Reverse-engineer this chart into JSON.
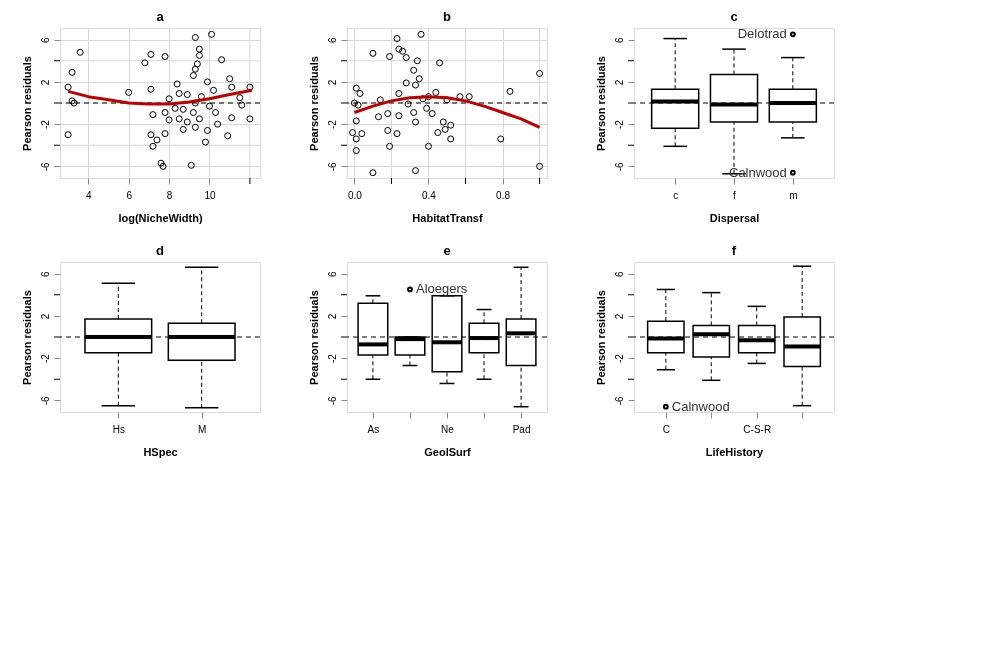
{
  "chart_data": [
    {
      "type": "scatter",
      "title": "a",
      "xlabel": "log(NicheWidth)",
      "ylabel": "Pearson residuals",
      "grid": true,
      "marker": "circle",
      "xlim": [
        2.6,
        12.5
      ],
      "xticks": [
        4,
        6,
        8,
        10,
        {
          "value": 12,
          "label": null
        }
      ],
      "ylim": [
        -7.1,
        7.1
      ],
      "yticks": [
        -6,
        {
          "value": -4,
          "label": null
        },
        -2,
        {
          "value": 0,
          "label": null
        },
        2,
        {
          "value": 4,
          "label": null
        },
        6
      ],
      "ref_lines": [
        {
          "axis": "y",
          "value": 0,
          "label": null,
          "color": "#000000",
          "line_style": "dashed"
        }
      ],
      "series": [
        {
          "type": "scatter",
          "color": "#000000",
          "x": [
            3.6,
            3.2,
            3.0,
            3.2,
            3.3,
            3.0,
            6.0,
            7.1,
            6.8,
            7.1,
            7.8,
            7.2,
            7.1,
            7.4,
            7.2,
            7.8,
            7.8,
            8.0,
            8.0,
            7.6,
            7.7,
            9.1,
            8.4,
            8.5,
            8.7,
            8.9,
            8.7,
            9.3,
            9.5,
            9.5,
            9.4,
            9.3,
            9.2,
            10.1,
            10.6,
            9.9,
            10.2,
            9.6,
            9.3,
            9.2,
            9.5,
            9.3,
            9.8,
            9.9,
            10.3,
            10.4,
            10.9,
            11.1,
            11.0,
            11.1,
            11.6,
            12.0,
            12.0,
            11.5,
            10.0,
            8.9,
            8.3,
            8.5
          ],
          "values": [
            4.8,
            2.9,
            1.5,
            0.2,
            0.0,
            -3.0,
            1.0,
            1.3,
            3.8,
            4.6,
            4.4,
            -1.1,
            -3.0,
            -3.5,
            -4.1,
            -2.9,
            -0.9,
            -1.6,
            0.4,
            -5.7,
            -6.0,
            -5.9,
            1.8,
            0.9,
            -0.6,
            -1.8,
            -2.5,
            6.2,
            5.1,
            4.5,
            3.7,
            3.2,
            2.6,
            6.5,
            4.1,
            2.0,
            1.2,
            0.6,
            0.0,
            -0.9,
            -1.5,
            -2.3,
            -3.7,
            -2.6,
            -0.9,
            -2.0,
            -3.1,
            -1.4,
            2.3,
            1.5,
            -0.2,
            -1.5,
            1.5,
            0.5,
            -0.3,
            0.8,
            -0.5,
            -1.5
          ]
        },
        {
          "type": "line",
          "marker": "none",
          "color": "#c00000",
          "x": [
            3.0,
            4.0,
            5.0,
            6.0,
            7.0,
            8.0,
            9.0,
            10.0,
            11.0,
            12.1
          ],
          "values": [
            1.1,
            0.6,
            0.3,
            0.0,
            -0.1,
            -0.1,
            0.1,
            0.4,
            0.8,
            1.2
          ]
        }
      ]
    },
    {
      "type": "scatter",
      "title": "b",
      "xlabel": "HabitatTransf",
      "ylabel": "Pearson residuals",
      "grid": true,
      "marker": "circle",
      "xlim": [
        -0.04,
        1.04
      ],
      "xticks": [
        {
          "value": 0,
          "label": "0.0"
        },
        {
          "value": 0.2,
          "label": null
        },
        0.4,
        {
          "value": 0.6,
          "label": null
        },
        0.8,
        {
          "value": 1.0,
          "label": null
        }
      ],
      "ylim": [
        -7.1,
        7.1
      ],
      "yticks": [
        -6,
        {
          "value": -4,
          "label": null
        },
        -2,
        {
          "value": 0,
          "label": null
        },
        2,
        {
          "value": 4,
          "label": null
        },
        6
      ],
      "ref_lines": [
        {
          "axis": "y",
          "value": 0,
          "label": null,
          "color": "#000000",
          "line_style": "dashed"
        }
      ],
      "series": [
        {
          "type": "scatter",
          "color": "#000000",
          "x": [
            0.1,
            0.1,
            0.33,
            0.36,
            0.23,
            0.24,
            0.26,
            0.19,
            0.28,
            0.34,
            0.46,
            0.32,
            0.35,
            0.33,
            0.28,
            0.24,
            0.14,
            0.01,
            0.03,
            0.0,
            0.02,
            0.01,
            -0.01,
            0.04,
            0.01,
            0.01,
            0.13,
            0.18,
            0.18,
            0.19,
            0.23,
            0.24,
            0.29,
            0.32,
            0.33,
            0.39,
            0.4,
            0.44,
            0.42,
            0.45,
            0.48,
            0.49,
            0.52,
            0.52,
            0.5,
            0.57,
            0.62,
            0.79,
            0.84,
            1.0,
            1.0,
            0.37,
            0.4
          ],
          "values": [
            4.7,
            -6.6,
            -6.4,
            6.5,
            6.1,
            5.1,
            4.9,
            4.4,
            4.3,
            4.0,
            3.8,
            3.1,
            2.3,
            1.7,
            1.9,
            0.9,
            0.3,
            1.4,
            0.9,
            0.0,
            -0.2,
            -1.7,
            -2.8,
            -2.9,
            -3.4,
            -4.5,
            -1.3,
            -1.0,
            -2.6,
            -4.1,
            -2.9,
            -1.2,
            -0.1,
            -0.9,
            -1.8,
            -0.5,
            -4.1,
            1.0,
            -1.0,
            -2.8,
            -1.8,
            -2.5,
            -2.1,
            -3.4,
            0.3,
            0.6,
            0.6,
            -3.4,
            1.1,
            2.8,
            -6.0,
            0.4,
            0.6
          ]
        },
        {
          "type": "line",
          "marker": "none",
          "color": "#c00000",
          "x": [
            0.0,
            0.1,
            0.2,
            0.3,
            0.4,
            0.5,
            0.6,
            0.7,
            0.8,
            0.9,
            1.0
          ],
          "values": [
            -0.9,
            -0.3,
            0.2,
            0.5,
            0.6,
            0.5,
            0.2,
            -0.3,
            -0.9,
            -1.5,
            -2.3
          ]
        }
      ]
    },
    {
      "type": "box",
      "title": "c",
      "xlabel": "Dispersal",
      "ylabel": "Pearson residuals",
      "categories": [
        "c",
        "f",
        "m"
      ],
      "ylim": [
        -7.1,
        7.1
      ],
      "yticks": [
        -6,
        {
          "value": -4,
          "label": null
        },
        -2,
        {
          "value": 0,
          "label": null
        },
        2,
        {
          "value": 4,
          "label": null
        },
        6
      ],
      "ref_lines": [
        {
          "axis": "y",
          "value": 0,
          "label": null,
          "color": "#000000",
          "line_style": "dashed"
        }
      ],
      "boxes": [
        {
          "low": -4.1,
          "q1": -2.4,
          "median": 0.15,
          "q3": 1.3,
          "high": 6.1
        },
        {
          "low": -6.7,
          "q1": -1.8,
          "median": -0.15,
          "q3": 2.7,
          "high": 5.1
        },
        {
          "low": -3.3,
          "q1": -1.8,
          "median": 0.0,
          "q3": 1.3,
          "high": 4.3,
          "outliers": [
            6.5,
            -6.6
          ]
        }
      ],
      "annotations": [
        "Delotrad",
        "Calnwood"
      ]
    },
    {
      "type": "box",
      "title": "d",
      "xlabel": "HSpec",
      "ylabel": "Pearson residuals",
      "categories": [
        "Hs",
        "M"
      ],
      "ylim": [
        -7.1,
        7.1
      ],
      "yticks": [
        -6,
        {
          "value": -4,
          "label": null
        },
        -2,
        {
          "value": 0,
          "label": null
        },
        2,
        {
          "value": 4,
          "label": null
        },
        6
      ],
      "ref_lines": [
        {
          "axis": "y",
          "value": 0,
          "label": null,
          "color": "#000000",
          "line_style": "dashed"
        }
      ],
      "boxes": [
        {
          "low": -6.5,
          "q1": -1.5,
          "median": 0.0,
          "q3": 1.7,
          "high": 5.1
        },
        {
          "low": -6.7,
          "q1": -2.2,
          "median": 0.0,
          "q3": 1.3,
          "high": 6.6
        }
      ]
    },
    {
      "type": "box",
      "title": "e",
      "xlabel": "GeolSurf",
      "ylabel": "Pearson residuals",
      "categories": [
        "As",
        null,
        "Ne",
        null,
        "Pad"
      ],
      "ylim": [
        -7.1,
        7.1
      ],
      "yticks": [
        -6,
        {
          "value": -4,
          "label": null
        },
        -2,
        {
          "value": 0,
          "label": null
        },
        2,
        {
          "value": 4,
          "label": null
        },
        6
      ],
      "ref_lines": [
        {
          "axis": "y",
          "value": 0,
          "label": null,
          "color": "#000000",
          "line_style": "dashed"
        }
      ],
      "boxes": [
        {
          "low": -4.0,
          "q1": -1.7,
          "median": -0.7,
          "q3": 3.2,
          "high": 3.9
        },
        {
          "low": -2.7,
          "q1": -1.7,
          "median": -0.2,
          "q3": 0.0,
          "high": 0.0,
          "outliers": [
            4.5
          ]
        },
        {
          "low": -4.4,
          "q1": -3.3,
          "median": -0.5,
          "q3": 3.9,
          "high": 3.9
        },
        {
          "low": -4.0,
          "q1": -1.5,
          "median": -0.1,
          "q3": 1.3,
          "high": 2.6
        },
        {
          "low": -6.6,
          "q1": -2.7,
          "median": 0.35,
          "q3": 1.7,
          "high": 6.6
        }
      ],
      "annotations": [
        "Aloegers"
      ]
    },
    {
      "type": "box",
      "title": "f",
      "xlabel": "LifeHistory",
      "ylabel": "Pearson residuals",
      "categories": [
        "C",
        null,
        "C-S-R",
        null
      ],
      "ylim": [
        -7.1,
        7.1
      ],
      "yticks": [
        -6,
        {
          "value": -4,
          "label": null
        },
        -2,
        {
          "value": 0,
          "label": null
        },
        2,
        {
          "value": 4,
          "label": null
        },
        6
      ],
      "ref_lines": [
        {
          "axis": "y",
          "value": 0,
          "label": null,
          "color": "#000000",
          "line_style": "dashed"
        }
      ],
      "boxes": [
        {
          "low": -3.1,
          "q1": -1.5,
          "median": -0.15,
          "q3": 1.5,
          "high": 4.5,
          "outliers": [
            -6.6
          ]
        },
        {
          "low": -4.1,
          "q1": -1.9,
          "median": 0.25,
          "q3": 1.1,
          "high": 4.2
        },
        {
          "low": -2.5,
          "q1": -1.5,
          "median": -0.3,
          "q3": 1.1,
          "high": 2.9
        },
        {
          "low": -6.5,
          "q1": -2.8,
          "median": -0.9,
          "q3": 1.9,
          "high": 6.7
        }
      ],
      "annotations": [
        "Calnwood"
      ]
    }
  ]
}
